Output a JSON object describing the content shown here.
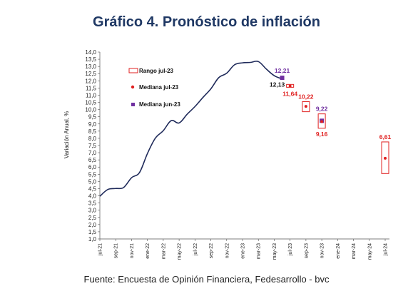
{
  "chart_data": {
    "type": "line",
    "title": "Gráfico 4. Pronóstico de inflación",
    "ylabel": "Variación Anual, %",
    "ylim": [
      1.0,
      14.0
    ],
    "yticks": [
      "1,0",
      "1,5",
      "2,0",
      "2,5",
      "3,0",
      "3,5",
      "4,0",
      "4,5",
      "5,0",
      "5,5",
      "6,0",
      "6,5",
      "7,0",
      "7,5",
      "8,0",
      "8,5",
      "9,0",
      "9,5",
      "10,0",
      "10,5",
      "11,0",
      "11,5",
      "12,0",
      "12,5",
      "13,0",
      "13,5",
      "14,0"
    ],
    "xticks": [
      "jul-21",
      "sep-21",
      "nov-21",
      "ene-22",
      "mar-22",
      "may-22",
      "jul-22",
      "sep-22",
      "nov-22",
      "ene-23",
      "mar-23",
      "may-23",
      "jul-23",
      "sep-23",
      "nov-23",
      "ene-24",
      "mar-24",
      "may-24",
      "jul-24"
    ],
    "series": [
      {
        "x": [
          "jul-21",
          "ago-21",
          "sep-21",
          "oct-21",
          "nov-21",
          "dic-21",
          "ene-22",
          "feb-22",
          "mar-22",
          "abr-22",
          "may-22",
          "jun-22",
          "jul-22",
          "ago-22",
          "sep-22",
          "oct-22",
          "nov-22",
          "dic-22",
          "ene-23",
          "feb-23",
          "mar-23",
          "abr-23",
          "may-23",
          "jun-23"
        ],
        "values": [
          3.97,
          4.44,
          4.51,
          4.58,
          5.26,
          5.62,
          6.94,
          8.01,
          8.53,
          9.23,
          9.07,
          9.67,
          10.21,
          10.84,
          11.44,
          12.22,
          12.53,
          13.12,
          13.25,
          13.28,
          13.34,
          12.82,
          12.36,
          12.13
        ],
        "color": "#1f2a5a"
      },
      {
        "name": "Rango jul-23",
        "kind": "range",
        "color": "#e02020",
        "ranges": [
          {
            "x": "jul-23",
            "low": 11.55,
            "high": 11.75
          },
          {
            "x": "sep-23",
            "low": 9.85,
            "high": 10.55
          },
          {
            "x": "nov-23",
            "low": 8.7,
            "high": 9.7
          },
          {
            "x": "jul-24",
            "low": 5.55,
            "high": 7.75
          }
        ]
      },
      {
        "name": "Mediana jul-23",
        "kind": "marker-dot",
        "color": "#e02020",
        "points": [
          {
            "x": "jul-23",
            "value": 11.64,
            "label": "11,64"
          },
          {
            "x": "sep-23",
            "value": 10.22,
            "label": "10,22"
          },
          {
            "x": "nov-23",
            "value": 9.16,
            "label": "9,16"
          },
          {
            "x": "jul-24",
            "value": 6.61,
            "label": "6,61"
          }
        ]
      },
      {
        "name": "Mediana jun-23",
        "kind": "marker-square",
        "color": "#7030a0",
        "points": [
          {
            "x": "jun-23",
            "value": 12.21,
            "label": "12,21"
          },
          {
            "x": "nov-23",
            "value": 9.22,
            "label": "9,22"
          }
        ]
      }
    ],
    "annotations": [
      {
        "x": "jun-23",
        "value": 12.13,
        "label": "12,13",
        "color": "#111111"
      }
    ],
    "legend_position": "top-left"
  },
  "source": "Fuente: Encuesta de Opinión Financiera, Fedesarrollo - bvc"
}
